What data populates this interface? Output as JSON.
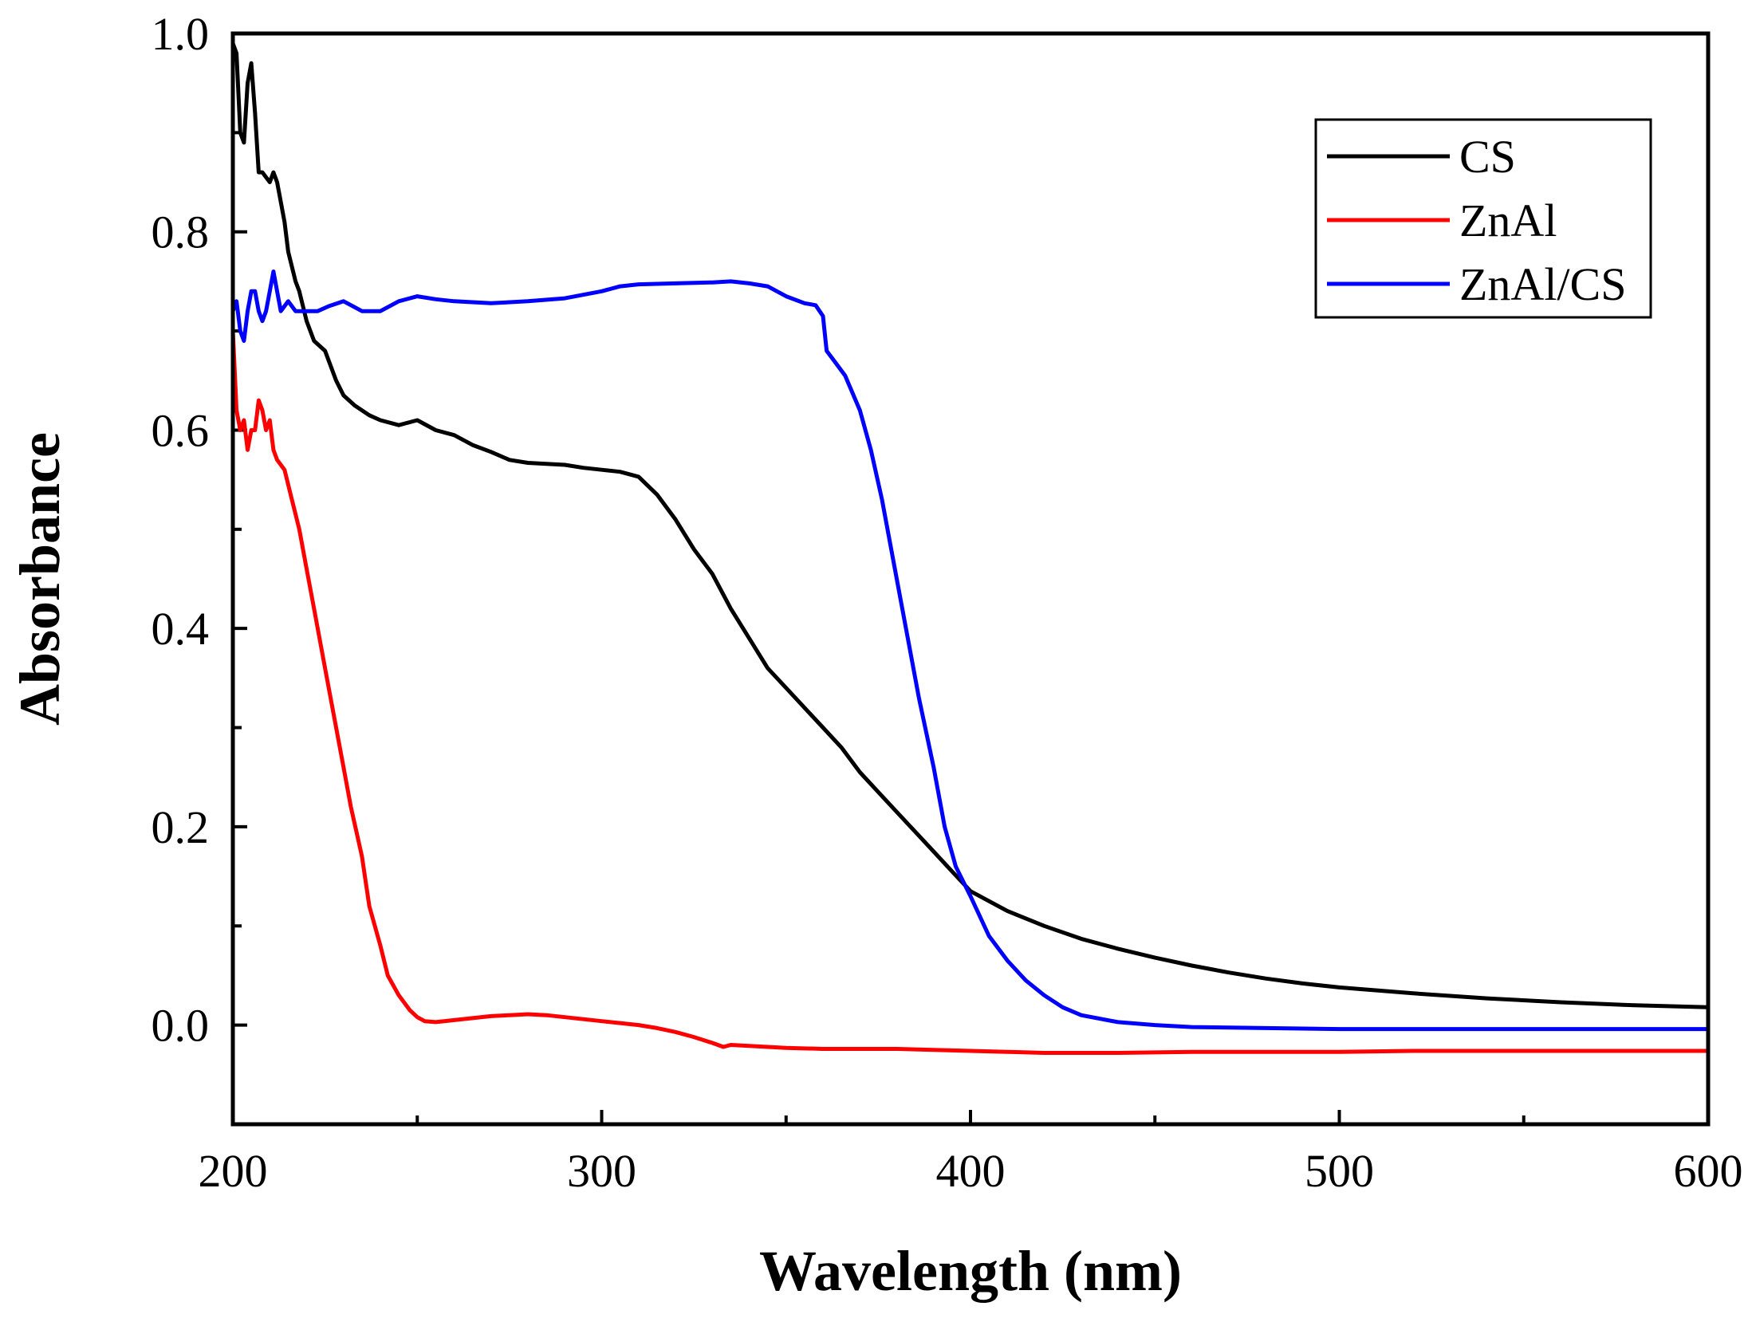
{
  "chart_data": {
    "type": "line",
    "title": "",
    "xlabel": "Wavelength (nm)",
    "ylabel": "Absorbance",
    "xlim": [
      200,
      600
    ],
    "ylim": [
      -0.1,
      1.0
    ],
    "x_major_ticks": [
      200,
      300,
      400,
      500,
      600
    ],
    "x_major_tick_labels": [
      "200",
      "300",
      "400",
      "500",
      "600"
    ],
    "x_minor_ticks": [
      250,
      350,
      450,
      550
    ],
    "y_major_ticks": [
      0.0,
      0.2,
      0.4,
      0.6,
      0.8,
      1.0
    ],
    "y_major_tick_labels": [
      "0.0",
      "0.2",
      "0.4",
      "0.6",
      "0.8",
      "1.0"
    ],
    "y_minor_ticks": [
      0.1,
      0.3,
      0.5,
      0.7,
      0.9
    ],
    "grid": false,
    "legend_position": "top-right",
    "series": [
      {
        "name": "CS",
        "color": "#000000",
        "x": [
          200,
          201,
          202,
          203,
          204,
          205,
          206,
          207,
          208,
          210,
          211,
          212,
          214,
          215,
          217,
          218,
          220,
          222,
          225,
          228,
          230,
          233,
          237,
          240,
          245,
          250,
          255,
          260,
          265,
          270,
          275,
          280,
          285,
          290,
          295,
          300,
          305,
          310,
          315,
          320,
          325,
          330,
          335,
          340,
          345,
          350,
          355,
          360,
          365,
          370,
          375,
          380,
          385,
          390,
          395,
          400,
          410,
          420,
          430,
          440,
          450,
          460,
          470,
          480,
          490,
          500,
          520,
          540,
          560,
          580,
          600
        ],
        "y": [
          0.99,
          0.98,
          0.9,
          0.89,
          0.95,
          0.97,
          0.92,
          0.86,
          0.86,
          0.85,
          0.86,
          0.85,
          0.81,
          0.78,
          0.75,
          0.74,
          0.71,
          0.69,
          0.68,
          0.65,
          0.635,
          0.625,
          0.615,
          0.61,
          0.605,
          0.61,
          0.6,
          0.595,
          0.585,
          0.578,
          0.57,
          0.567,
          0.566,
          0.565,
          0.562,
          0.56,
          0.558,
          0.553,
          0.535,
          0.51,
          0.48,
          0.455,
          0.42,
          0.39,
          0.36,
          0.34,
          0.32,
          0.3,
          0.28,
          0.255,
          0.235,
          0.215,
          0.195,
          0.175,
          0.155,
          0.135,
          0.115,
          0.1,
          0.087,
          0.077,
          0.068,
          0.06,
          0.053,
          0.047,
          0.042,
          0.038,
          0.032,
          0.027,
          0.023,
          0.02,
          0.018
        ]
      },
      {
        "name": "ZnAl",
        "color": "#ff0000",
        "x": [
          200,
          201,
          202,
          203,
          204,
          205,
          206,
          207,
          208,
          209,
          210,
          211,
          212,
          214,
          216,
          218,
          220,
          222,
          225,
          228,
          230,
          232,
          235,
          237,
          240,
          242,
          245,
          248,
          250,
          252,
          255,
          260,
          265,
          270,
          275,
          280,
          285,
          290,
          295,
          300,
          305,
          310,
          315,
          320,
          325,
          330,
          333,
          335,
          340,
          345,
          350,
          360,
          370,
          380,
          390,
          400,
          410,
          420,
          440,
          460,
          480,
          500,
          520,
          540,
          560,
          580,
          600
        ],
        "y": [
          0.7,
          0.62,
          0.6,
          0.61,
          0.58,
          0.6,
          0.6,
          0.63,
          0.62,
          0.6,
          0.61,
          0.58,
          0.57,
          0.56,
          0.53,
          0.5,
          0.46,
          0.42,
          0.36,
          0.3,
          0.26,
          0.22,
          0.17,
          0.12,
          0.08,
          0.05,
          0.03,
          0.015,
          0.008,
          0.004,
          0.003,
          0.005,
          0.007,
          0.009,
          0.01,
          0.011,
          0.01,
          0.008,
          0.006,
          0.004,
          0.002,
          0.0,
          -0.003,
          -0.007,
          -0.012,
          -0.018,
          -0.022,
          -0.02,
          -0.021,
          -0.022,
          -0.023,
          -0.024,
          -0.024,
          -0.024,
          -0.025,
          -0.026,
          -0.027,
          -0.028,
          -0.028,
          -0.027,
          -0.027,
          -0.027,
          -0.026,
          -0.026,
          -0.026,
          -0.026,
          -0.026
        ]
      },
      {
        "name": "ZnAl/CS",
        "color": "#0000ff",
        "x": [
          200,
          201,
          202,
          203,
          204,
          205,
          206,
          207,
          208,
          209,
          210,
          211,
          212,
          213,
          215,
          217,
          220,
          223,
          226,
          230,
          235,
          240,
          245,
          250,
          255,
          260,
          270,
          280,
          290,
          300,
          305,
          310,
          320,
          330,
          335,
          340,
          345,
          350,
          355,
          358,
          360,
          361,
          363,
          366,
          370,
          373,
          376,
          380,
          383,
          386,
          390,
          393,
          396,
          400,
          405,
          410,
          415,
          420,
          425,
          430,
          440,
          450,
          460,
          480,
          500,
          520,
          540,
          560,
          580,
          600
        ],
        "y": [
          0.72,
          0.73,
          0.7,
          0.69,
          0.72,
          0.74,
          0.74,
          0.72,
          0.71,
          0.72,
          0.74,
          0.76,
          0.74,
          0.72,
          0.73,
          0.72,
          0.72,
          0.72,
          0.725,
          0.73,
          0.72,
          0.72,
          0.73,
          0.735,
          0.732,
          0.73,
          0.728,
          0.73,
          0.733,
          0.74,
          0.745,
          0.747,
          0.748,
          0.749,
          0.75,
          0.748,
          0.745,
          0.735,
          0.728,
          0.726,
          0.715,
          0.68,
          0.67,
          0.655,
          0.62,
          0.58,
          0.53,
          0.45,
          0.39,
          0.33,
          0.26,
          0.2,
          0.16,
          0.13,
          0.09,
          0.065,
          0.045,
          0.03,
          0.018,
          0.01,
          0.003,
          0.0,
          -0.002,
          -0.003,
          -0.004,
          -0.004,
          -0.004,
          -0.004,
          -0.004,
          -0.004
        ]
      }
    ]
  }
}
